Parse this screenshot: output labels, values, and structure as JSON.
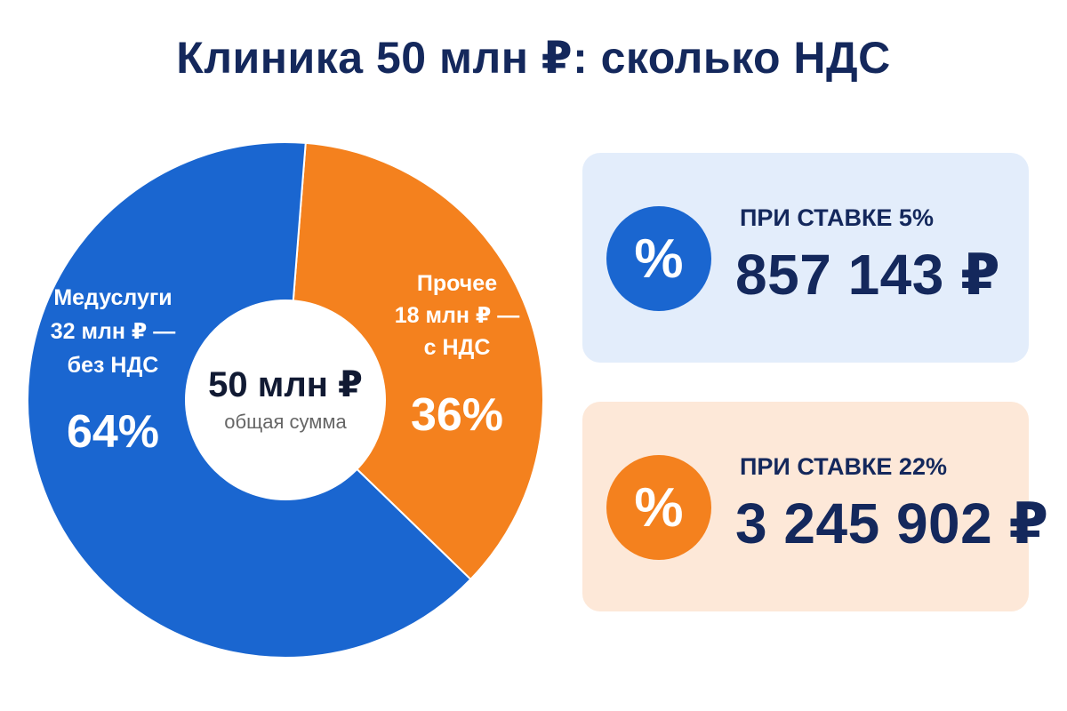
{
  "title": "Клиника 50 млн ₽: сколько НДС",
  "chart_data": {
    "type": "pie",
    "title": "Клиника 50 млн ₽: сколько НДС",
    "center": {
      "value": "50 млн ₽",
      "label": "общая сумма"
    },
    "slices": [
      {
        "label_lines": [
          "Медуслуги",
          "32 млн ₽ —",
          "без НДС"
        ],
        "value": 32,
        "percent_label": "64%",
        "color": "#1a66d0"
      },
      {
        "label_lines": [
          "Прочее",
          "18 млн ₽ —",
          "с НДС"
        ],
        "value": 18,
        "percent_label": "36%",
        "color": "#f4811e"
      }
    ]
  },
  "cards": [
    {
      "icon": "percent-icon",
      "symbol": "%",
      "rate_label": "ПРИ СТАВКЕ 5%",
      "amount": "857 143 ₽",
      "color": "#1a66d0"
    },
    {
      "icon": "percent-icon",
      "symbol": "%",
      "rate_label": "ПРИ СТАВКЕ 22%",
      "amount": "3 245 902 ₽",
      "color": "#f4811e"
    }
  ]
}
